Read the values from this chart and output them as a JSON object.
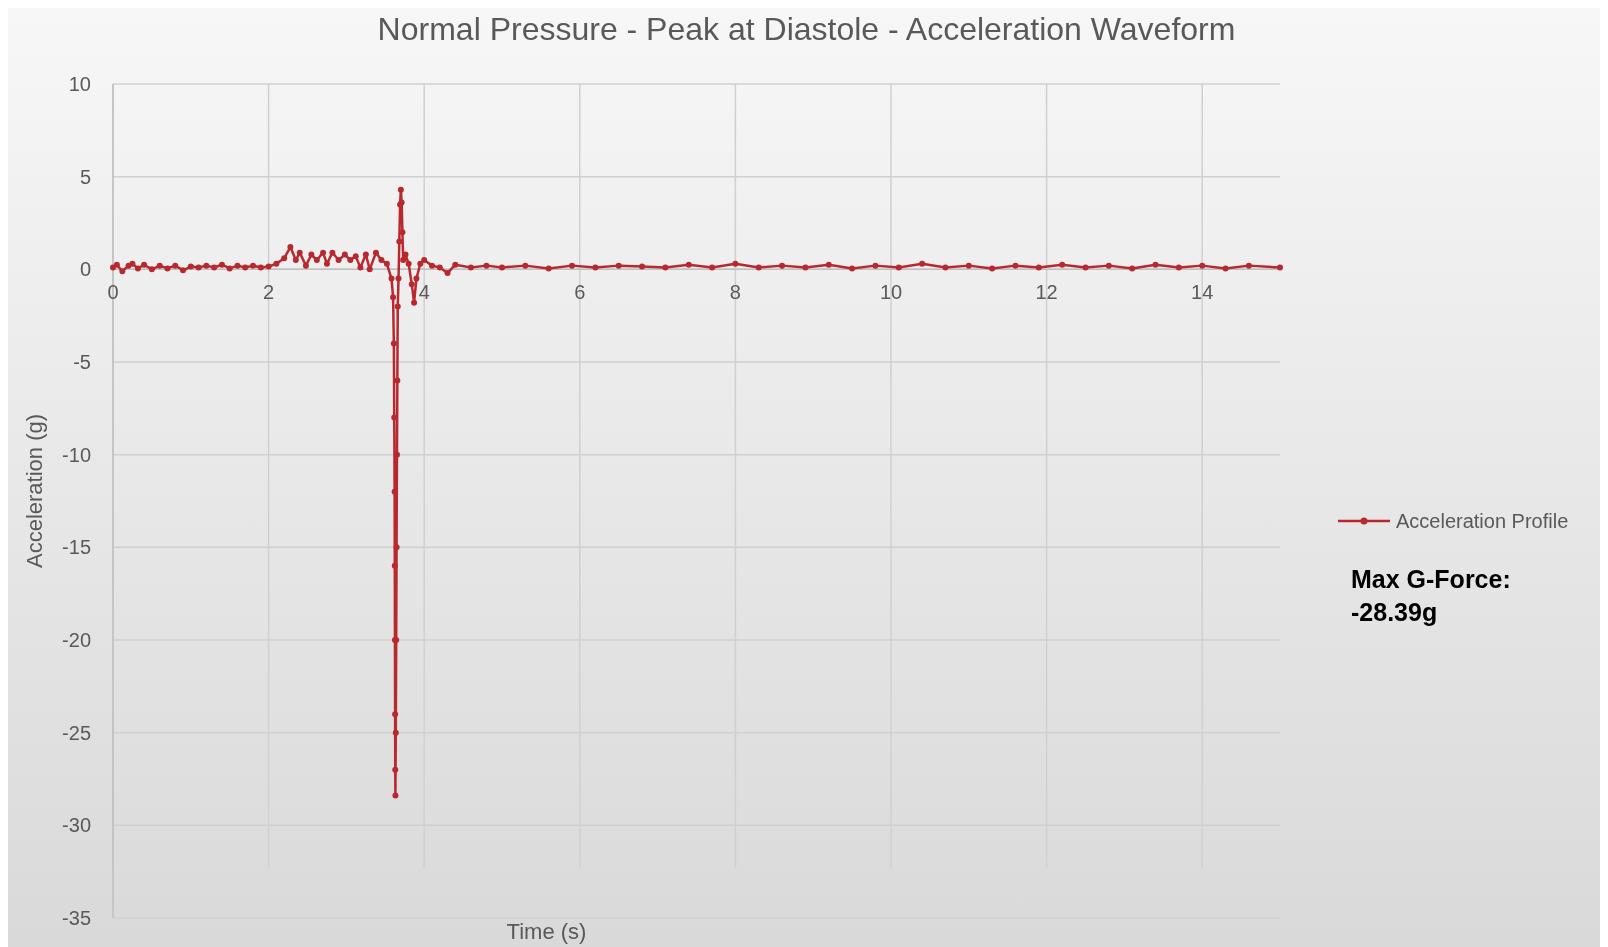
{
  "chart_data": {
    "type": "line",
    "title": "Normal Pressure - Peak at Diastole - Acceleration Waveform",
    "xlabel": "Time (s)",
    "ylabel": "Acceleration  (g)",
    "x": [
      0,
      0.05,
      0.12,
      0.2,
      0.25,
      0.32,
      0.4,
      0.5,
      0.6,
      0.7,
      0.8,
      0.9,
      1.0,
      1.1,
      1.2,
      1.3,
      1.4,
      1.5,
      1.6,
      1.7,
      1.8,
      1.9,
      2.0,
      2.1,
      2.2,
      2.28,
      2.35,
      2.4,
      2.48,
      2.55,
      2.62,
      2.7,
      2.75,
      2.82,
      2.9,
      2.98,
      3.05,
      3.12,
      3.18,
      3.25,
      3.3,
      3.38,
      3.45,
      3.52,
      3.58,
      3.6,
      3.61,
      3.615,
      3.62,
      3.622,
      3.624,
      3.626,
      3.628,
      3.63,
      3.635,
      3.64,
      3.645,
      3.65,
      3.655,
      3.66,
      3.67,
      3.68,
      3.69,
      3.7,
      3.71,
      3.72,
      3.73,
      3.76,
      3.8,
      3.84,
      3.87,
      3.9,
      3.95,
      4.0,
      4.1,
      4.2,
      4.3,
      4.4,
      4.6,
      4.8,
      5.0,
      5.3,
      5.6,
      5.9,
      6.2,
      6.5,
      6.8,
      7.1,
      7.4,
      7.7,
      8.0,
      8.3,
      8.6,
      8.9,
      9.2,
      9.5,
      9.8,
      10.1,
      10.4,
      10.7,
      11.0,
      11.3,
      11.6,
      11.9,
      12.2,
      12.5,
      12.8,
      13.1,
      13.4,
      13.7,
      14.0,
      14.3,
      14.6,
      15.0
    ],
    "series": [
      {
        "name": "Acceleration Profile",
        "color": "#b8292f",
        "values": [
          0.1,
          0.25,
          -0.1,
          0.2,
          0.3,
          0.05,
          0.25,
          0.0,
          0.2,
          0.05,
          0.2,
          -0.05,
          0.15,
          0.1,
          0.2,
          0.1,
          0.25,
          0.05,
          0.2,
          0.1,
          0.2,
          0.1,
          0.15,
          0.3,
          0.6,
          1.2,
          0.5,
          0.9,
          0.2,
          0.8,
          0.5,
          0.9,
          0.3,
          0.9,
          0.5,
          0.8,
          0.5,
          0.7,
          0.1,
          0.8,
          0.0,
          0.9,
          0.5,
          0.3,
          -0.5,
          -1.5,
          -4,
          -8,
          -12,
          -16,
          -20,
          -24,
          -27,
          -28.39,
          -25,
          -20,
          -15,
          -10,
          -6,
          -2,
          -0.5,
          1.5,
          3.5,
          4.3,
          3.6,
          2,
          0.5,
          0.8,
          0.3,
          -0.8,
          -1.8,
          -0.5,
          0.3,
          0.5,
          0.2,
          0.1,
          -0.2,
          0.25,
          0.1,
          0.2,
          0.1,
          0.2,
          0.05,
          0.2,
          0.1,
          0.2,
          0.15,
          0.1,
          0.25,
          0.1,
          0.3,
          0.1,
          0.2,
          0.1,
          0.25,
          0.05,
          0.2,
          0.1,
          0.3,
          0.1,
          0.2,
          0.05,
          0.2,
          0.1,
          0.25,
          0.1,
          0.2,
          0.05,
          0.25,
          0.1,
          0.2,
          0.05,
          0.2,
          0.1
        ]
      }
    ],
    "xlim": [
      0,
      15
    ],
    "xticks": [
      0,
      2,
      4,
      6,
      8,
      10,
      12,
      14
    ],
    "ylim": [
      -35,
      10
    ],
    "yticks": [
      -35,
      -30,
      -25,
      -20,
      -15,
      -10,
      -5,
      0,
      5,
      10
    ],
    "grid": true,
    "legend": "right",
    "marker": "circle",
    "line_style": "solid",
    "annotations": [
      "Max G-Force:\n-28.39g"
    ]
  }
}
